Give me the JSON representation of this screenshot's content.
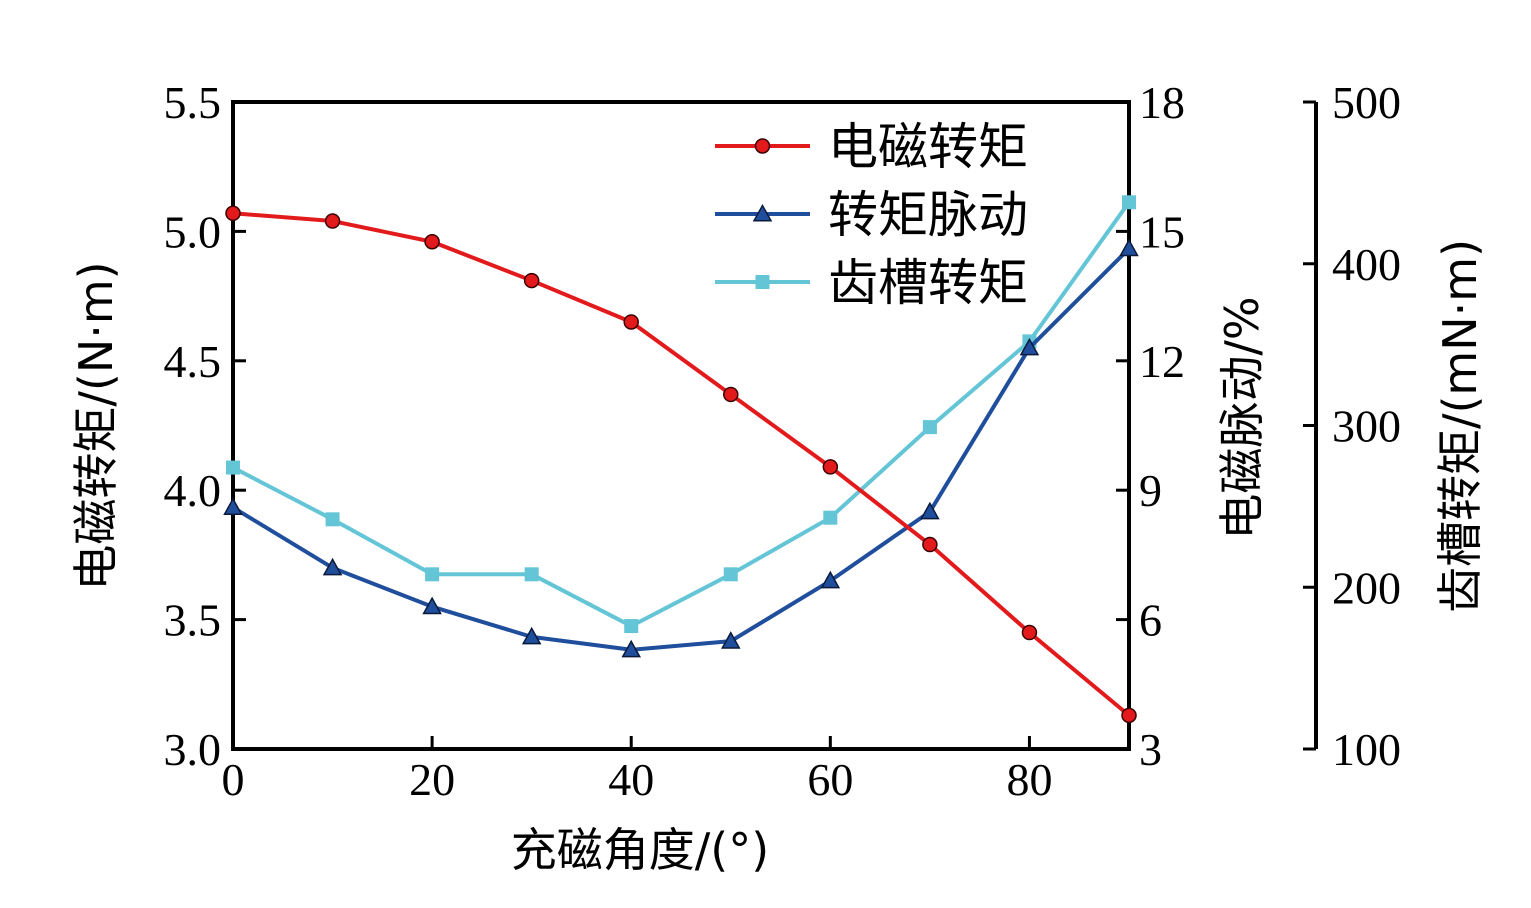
{
  "chart_data": {
    "type": "line",
    "xlabel": "充磁角度/(°)",
    "x": [
      0,
      10,
      20,
      30,
      40,
      50,
      60,
      70,
      80,
      90
    ],
    "xlim": [
      0,
      90
    ],
    "xticks": [
      "0",
      "20",
      "40",
      "60",
      "80"
    ],
    "xtick_values": [
      0,
      20,
      40,
      60,
      80
    ],
    "axes": {
      "left": {
        "label": "电磁转矩/(N·m)",
        "ylim": [
          3.0,
          5.5
        ],
        "ticks": [
          "3.0",
          "3.5",
          "4.0",
          "4.5",
          "5.0",
          "5.5"
        ],
        "tick_values": [
          3.0,
          3.5,
          4.0,
          4.5,
          5.0,
          5.5
        ]
      },
      "right": {
        "label": "电磁脉动/%",
        "ylim": [
          3,
          18
        ],
        "ticks": [
          "3",
          "6",
          "9",
          "12",
          "15",
          "18"
        ],
        "tick_values": [
          3,
          6,
          9,
          12,
          15,
          18
        ]
      },
      "far_right": {
        "label": "齿槽转矩/(mN·m)",
        "ylim": [
          100,
          500
        ],
        "ticks": [
          "100",
          "200",
          "300",
          "400",
          "500"
        ],
        "tick_values": [
          100,
          200,
          300,
          400,
          500
        ]
      }
    },
    "series": [
      {
        "name": "电磁转矩",
        "axis": "left",
        "color": "#e31a1c",
        "marker": "circle",
        "values": [
          5.07,
          5.04,
          4.96,
          4.81,
          4.65,
          4.37,
          4.09,
          3.79,
          3.45,
          3.13
        ]
      },
      {
        "name": "转矩脉动",
        "axis": "right",
        "color": "#1f4e9c",
        "marker": "triangle",
        "values": [
          8.6,
          7.2,
          6.3,
          5.6,
          5.3,
          5.5,
          6.9,
          8.5,
          12.3,
          14.6
        ]
      },
      {
        "name": "齿槽转矩",
        "axis": "far_right",
        "color": "#63c5d6",
        "marker": "square",
        "values": [
          274,
          242,
          208,
          208,
          176,
          208,
          243,
          299,
          352,
          438
        ]
      }
    ],
    "legend": {
      "position": "top-right"
    }
  }
}
